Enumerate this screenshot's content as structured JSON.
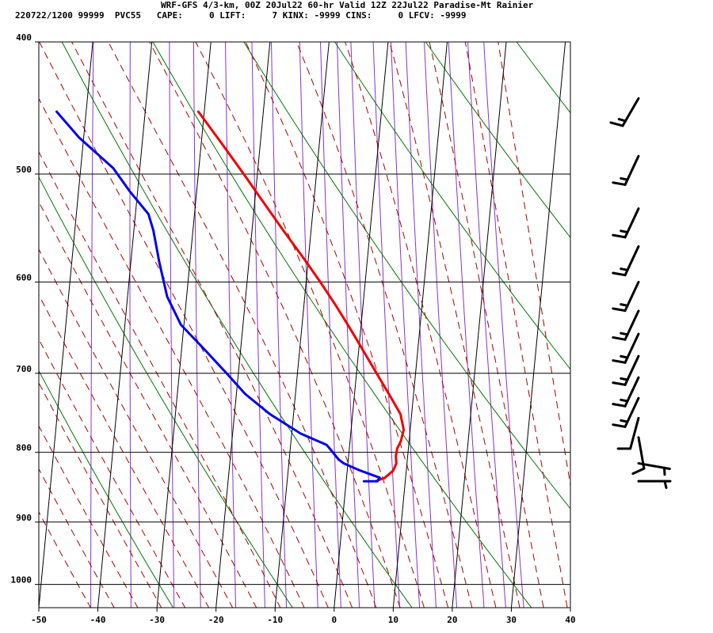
{
  "header": {
    "line1": "WRF-GFS 4/3-km, 00Z 20Jul22 60-hr Valid 12Z 22Jul22 Paradise-Mt Rainier",
    "line2": "220722/1200 99999  PVC55   CAPE:     0 LIFT:     7 KINX: -9999 CINS:     0 LFCV: -9999"
  },
  "chart_data": {
    "type": "line",
    "subtype": "skew-T log-p sounding",
    "x_axis": {
      "ticks": [
        -50,
        -40,
        -30,
        -20,
        -10,
        0,
        10,
        20,
        30,
        40
      ],
      "range": [
        -50,
        40
      ],
      "unit": "temperature C at lower boundary"
    },
    "y_axis": {
      "ticks": [
        400,
        500,
        600,
        700,
        800,
        900,
        1000
      ],
      "range": [
        400,
        1040
      ],
      "scale": "log-pressure"
    },
    "grid": true,
    "series": [
      {
        "kind": "temperature",
        "color": "#ee0000",
        "points": [
          [
            840,
            5
          ],
          [
            835,
            6.5
          ],
          [
            825,
            7.8
          ],
          [
            815,
            8.2
          ],
          [
            805,
            8
          ],
          [
            795,
            8.1
          ],
          [
            785,
            8.6
          ],
          [
            770,
            8.9
          ],
          [
            750,
            8.1
          ],
          [
            730,
            6.3
          ],
          [
            700,
            3.4
          ],
          [
            675,
            0.9
          ],
          [
            650,
            -1.7
          ],
          [
            625,
            -4.5
          ],
          [
            600,
            -7.6
          ],
          [
            575,
            -11.0
          ],
          [
            550,
            -14.7
          ],
          [
            520,
            -19.2
          ],
          [
            500,
            -22.3
          ],
          [
            475,
            -26.5
          ],
          [
            450,
            -31.0
          ]
        ]
      },
      {
        "kind": "dewpoint",
        "color": "#0000ee",
        "points": [
          [
            840,
            3
          ],
          [
            840,
            5.3
          ],
          [
            835,
            5.6
          ],
          [
            825,
            2.2
          ],
          [
            815,
            -0.7
          ],
          [
            810,
            -1.6
          ],
          [
            795,
            -3.3
          ],
          [
            790,
            -3.9
          ],
          [
            775,
            -8.5
          ],
          [
            750,
            -14
          ],
          [
            725,
            -18.5
          ],
          [
            700,
            -22
          ],
          [
            670,
            -26.5
          ],
          [
            645,
            -30.5
          ],
          [
            615,
            -33.3
          ],
          [
            580,
            -35.2
          ],
          [
            550,
            -36.7
          ],
          [
            535,
            -37.8
          ],
          [
            515,
            -41.3
          ],
          [
            495,
            -44.5
          ],
          [
            470,
            -50.8
          ],
          [
            450,
            -55
          ]
        ]
      }
    ],
    "wind_barbs": [
      {
        "pressure": 840,
        "speed_kt": 5,
        "dir_deg": 90
      },
      {
        "pressure": 815,
        "speed_kt": 5,
        "dir_deg": 100
      },
      {
        "pressure": 780,
        "speed_kt": 10,
        "dir_deg": 170
      },
      {
        "pressure": 755,
        "speed_kt": 10,
        "dir_deg": 195
      },
      {
        "pressure": 730,
        "speed_kt": 15,
        "dir_deg": 205
      },
      {
        "pressure": 705,
        "speed_kt": 15,
        "dir_deg": 205
      },
      {
        "pressure": 680,
        "speed_kt": 15,
        "dir_deg": 205
      },
      {
        "pressure": 655,
        "speed_kt": 15,
        "dir_deg": 205
      },
      {
        "pressure": 630,
        "speed_kt": 15,
        "dir_deg": 205
      },
      {
        "pressure": 600,
        "speed_kt": 15,
        "dir_deg": 205
      },
      {
        "pressure": 565,
        "speed_kt": 15,
        "dir_deg": 205
      },
      {
        "pressure": 530,
        "speed_kt": 15,
        "dir_deg": 205
      },
      {
        "pressure": 485,
        "speed_kt": 15,
        "dir_deg": 205
      },
      {
        "pressure": 440,
        "speed_kt": 15,
        "dir_deg": 210
      }
    ],
    "colors": {
      "isotherms": "#000000",
      "dry_adiabats": "#007700",
      "moist_adiabats": "#aa0000",
      "mixing_ratio": "#8833cc"
    }
  }
}
